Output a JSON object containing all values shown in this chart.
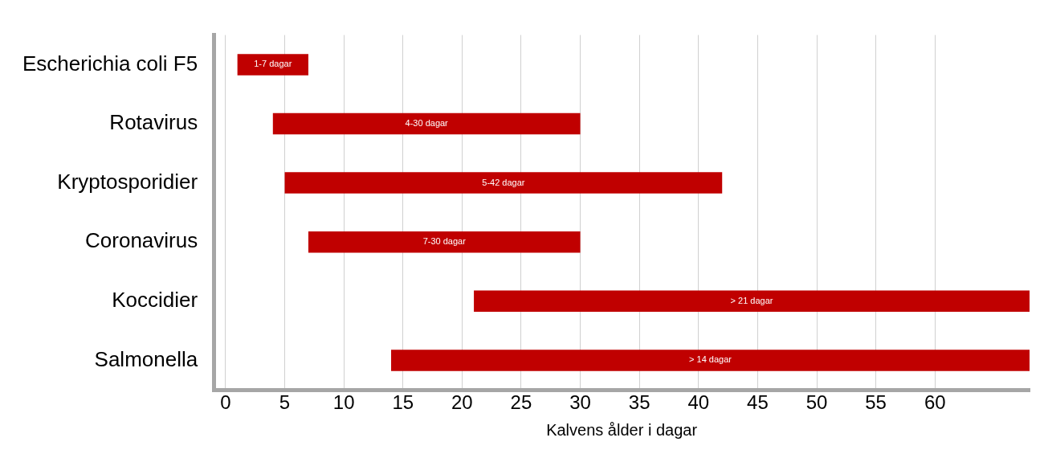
{
  "chart_data": {
    "type": "bar",
    "orientation": "horizontal",
    "xlabel": "Kalvens ålder i dagar",
    "categories": [
      "Escherichia coli F5",
      "Rotavirus",
      "Kryptosporidier",
      "Coronavirus",
      "Koccidier",
      "Salmonella"
    ],
    "base": [
      1,
      4,
      5,
      7,
      21,
      14
    ],
    "values": [
      6,
      26,
      37,
      23,
      47,
      54
    ],
    "value_labels": [
      "1-7 dagar",
      "4-30 dagar",
      "5-42 dagar",
      "7-30 dagar",
      "> 21 dagar",
      "> 14 dagar"
    ],
    "color": "#c00000",
    "xlim": [
      -1,
      68
    ],
    "xticks": [
      0,
      5,
      10,
      15,
      20,
      25,
      30,
      35,
      40,
      45,
      50,
      55,
      60
    ],
    "grid": "x",
    "legend": false
  }
}
